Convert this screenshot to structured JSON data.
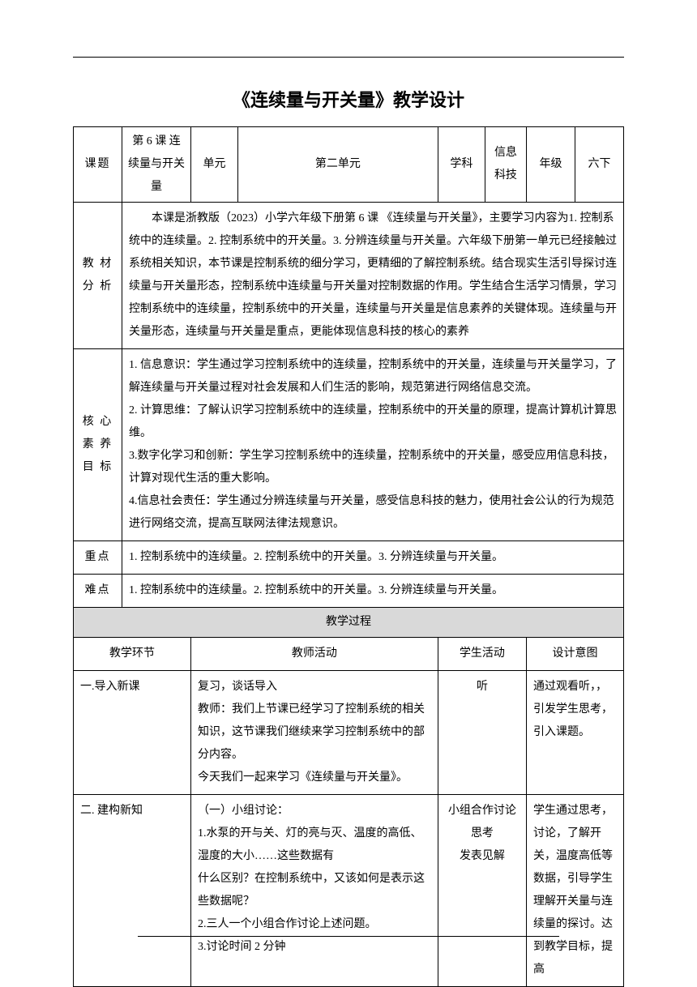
{
  "title": "《连续量与开关量》教学设计",
  "header": {
    "labels": {
      "topic": "课题",
      "unit": "单元",
      "subject": "学科",
      "grade": "年级"
    },
    "values": {
      "topic": "第 6 课 连续量与开关量",
      "unit": "第二单元",
      "subject": "信息科技",
      "grade": "六下"
    }
  },
  "sections": {
    "material_analysis": {
      "label": "教 材分 析",
      "content": "　　本课是浙教版（2023）小学六年级下册第 6 课 《连续量与开关量》，主要学习内容为1. 控制系统中的连续量。2. 控制系统中的开关量。3. 分辨连续量与开关量。六年级下册第一单元已经接触过系统相关知识，本节课是控制系统的细分学习，更精细的了解控制系统。结合现实生活引导探讨连续量与开关量形态，控制系统中连续量与开关量对控制数据的作用。学生结合生活学习情景，学习控制系统中的连续量，控制系统中的开关量，连续量与开关量是信息素养的关键体现。连续量与开关量形态，连续量与开关量是重点，更能体现信息科技的核心的素养"
    },
    "core_goals": {
      "label": "核 心素 养目 标",
      "items": [
        "1. 信息意识：学生通过学习控制系统中的连续量，控制系统中的开关量，连续量与开关量学习，了解连续量与开关量过程对社会发展和人们生活的影响，规范第进行网络信息交流。",
        "2. 计算思维：了解认识学习控制系统中的连续量，控制系统中的开关量的原理，提高计算机计算思维。",
        "3.数字化学习和创新：学生学习控制系统中的连续量，控制系统中的开关量，感受应用信息科技，计算对现代生活的重大影响。",
        "4.信息社会责任：学生通过分辨连续量与开关量，感受信息科技的魅力，使用社会公认的行为规范进行网络交流，提高互联网法律法规意识。"
      ]
    },
    "key_point": {
      "label": "重点",
      "content": "1. 控制系统中的连续量。2. 控制系统中的开关量。3. 分辨连续量与开关量。"
    },
    "difficulty": {
      "label": "难点",
      "content": "1. 控制系统中的连续量。2. 控制系统中的开关量。3. 分辨连续量与开关量。"
    }
  },
  "process": {
    "header": "教学过程",
    "columns": {
      "stage": "教学环节",
      "teacher": "教师活动",
      "student": "学生活动",
      "design": "设计意图"
    },
    "rows": [
      {
        "stage": "一.导入新课",
        "teacher_lines": [
          "复习，谈话导入",
          "教师：我们上节课已经学习了控制系统的相关知识，这节课我们继续来学习控制系统中的部分内容。",
          "今天我们一起来学习《连续量与开关量》。"
        ],
        "student": "听",
        "design": "通过观看听，，引发学生思考，引入课题。"
      },
      {
        "stage": "二. 建构新知",
        "teacher_lines": [
          "（一）小组讨论：",
          "1.水泵的开与关、灯的亮与灭、温度的高低、湿度的大小……这些数据有",
          "什么区别？在控制系统中，又该如何是表示这些数据呢？",
          "2.三人一个小组合作讨论上述问题。",
          "3.讨论时间 2 分钟"
        ],
        "student_lines": [
          "小组合作讨论",
          "思考",
          "发表见解"
        ],
        "design": "学生通过思考，讨论，了解开关，温度高低等数据，引导学生理解开关量与连续量的探讨。达到教学目标，提高"
      }
    ]
  }
}
